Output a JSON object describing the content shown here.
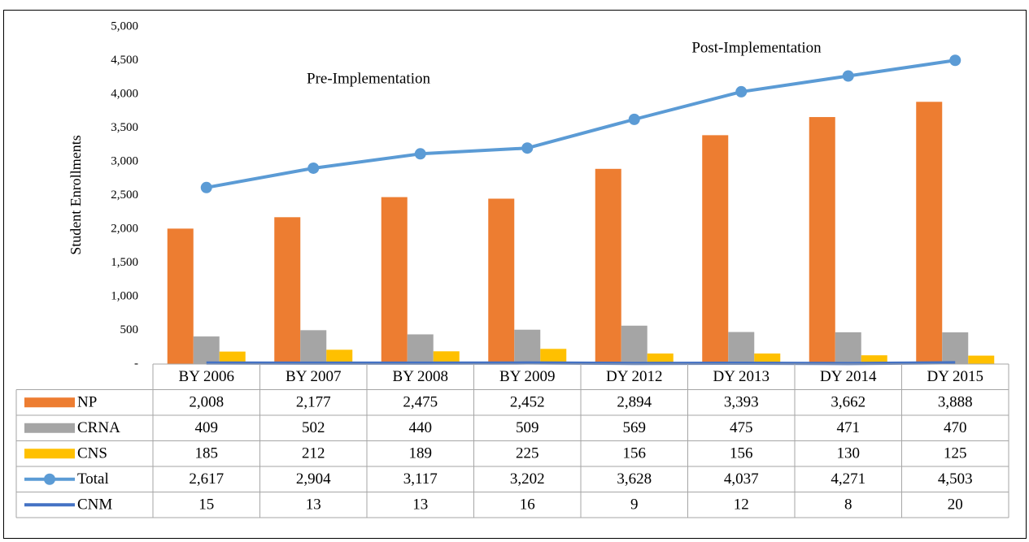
{
  "chart_data": {
    "type": "bar",
    "ylabel": "Student Enrollments",
    "annotations": [
      "Pre-Implementation",
      "Post-Implementation"
    ],
    "categories": [
      "BY 2006",
      "BY 2007",
      "BY 2008",
      "BY 2009",
      "DY 2012",
      "DY 2013",
      "DY 2014",
      "DY 2015"
    ],
    "series": [
      {
        "name": "NP",
        "type": "bar",
        "color": "#ed7d31",
        "values": [
          2008,
          2177,
          2475,
          2452,
          2894,
          3393,
          3662,
          3888
        ],
        "value_labels": [
          "2,008",
          "2,177",
          "2,475",
          "2,452",
          "2,894",
          "3,393",
          "3,662",
          "3,888"
        ]
      },
      {
        "name": "CRNA",
        "type": "bar",
        "color": "#a5a5a5",
        "values": [
          409,
          502,
          440,
          509,
          569,
          475,
          471,
          470
        ],
        "value_labels": [
          "409",
          "502",
          "440",
          "509",
          "569",
          "475",
          "471",
          "470"
        ]
      },
      {
        "name": "CNS",
        "type": "bar",
        "color": "#ffc000",
        "values": [
          185,
          212,
          189,
          225,
          156,
          156,
          130,
          125
        ],
        "value_labels": [
          "185",
          "212",
          "189",
          "225",
          "156",
          "156",
          "130",
          "125"
        ]
      },
      {
        "name": "Total",
        "type": "line",
        "markers": true,
        "color": "#5b9bd5",
        "values": [
          2617,
          2904,
          3117,
          3202,
          3628,
          4037,
          4271,
          4503
        ],
        "value_labels": [
          "2,617",
          "2,904",
          "3,117",
          "3,202",
          "3,628",
          "4,037",
          "4,271",
          "4,503"
        ]
      },
      {
        "name": "CNM",
        "type": "line",
        "markers": false,
        "color": "#4472c4",
        "values": [
          15,
          13,
          13,
          16,
          9,
          12,
          8,
          20
        ],
        "value_labels": [
          "15",
          "13",
          "13",
          "16",
          "9",
          "12",
          "8",
          "20"
        ]
      }
    ],
    "ylim": [
      0,
      5000
    ],
    "yticks": [
      {
        "value": 0,
        "label": "-"
      },
      {
        "value": 500,
        "label": "500"
      },
      {
        "value": 1000,
        "label": "1,000"
      },
      {
        "value": 1500,
        "label": "1,500"
      },
      {
        "value": 2000,
        "label": "2,000"
      },
      {
        "value": 2500,
        "label": "2,500"
      },
      {
        "value": 3000,
        "label": "3,000"
      },
      {
        "value": 3500,
        "label": "3,500"
      },
      {
        "value": 4000,
        "label": "4,000"
      },
      {
        "value": 4500,
        "label": "4,500"
      },
      {
        "value": 5000,
        "label": "5,000"
      }
    ],
    "grid": false
  }
}
